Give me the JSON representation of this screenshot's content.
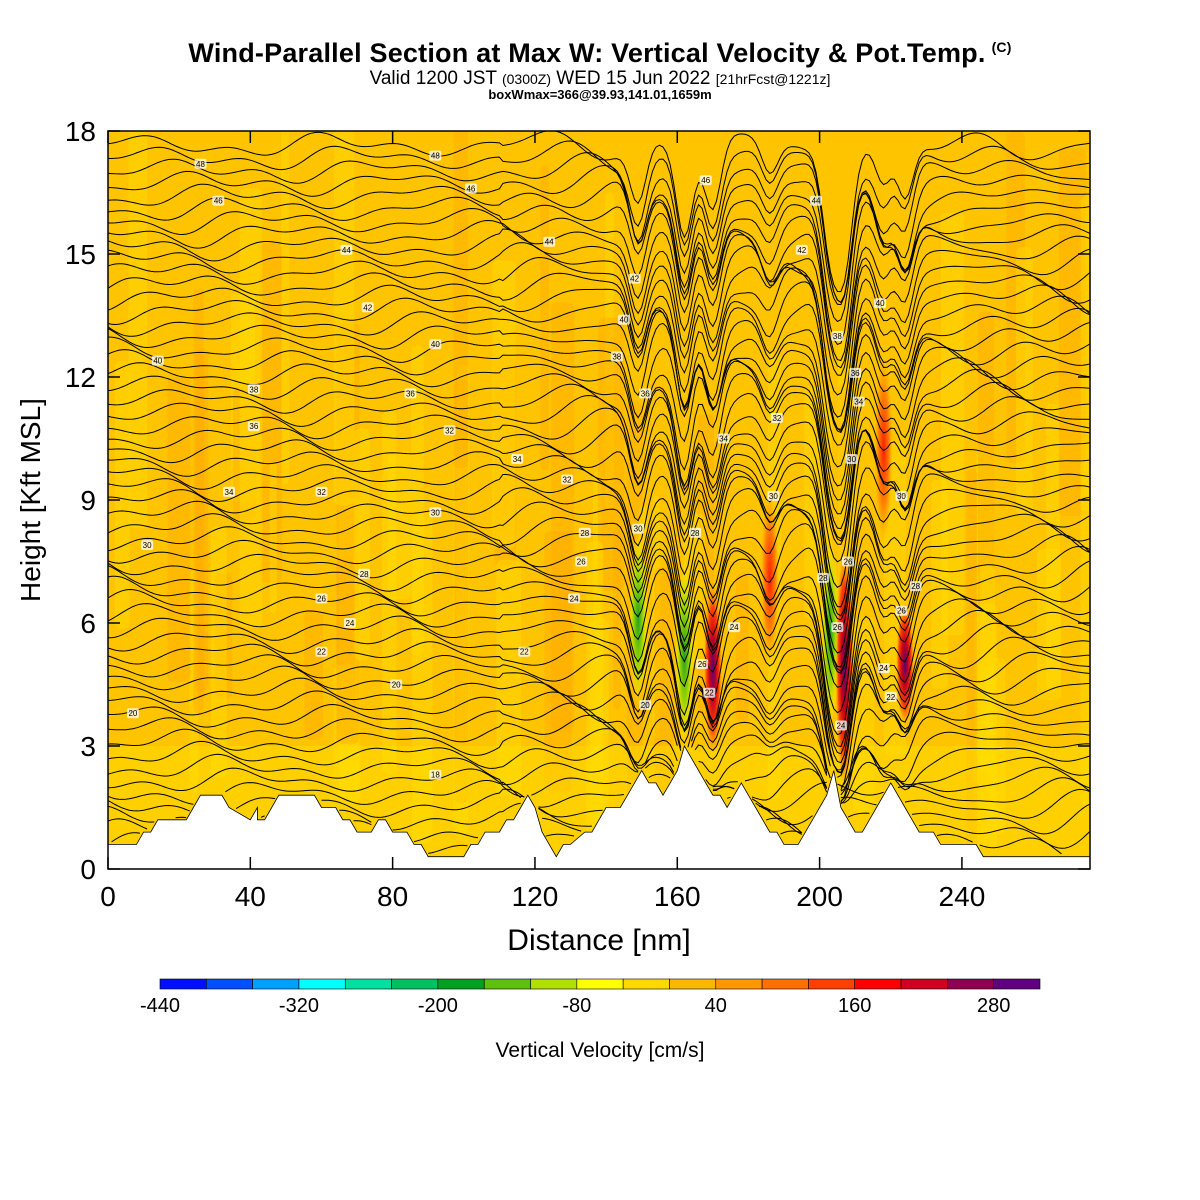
{
  "header": {
    "title": "Wind-Parallel Section at Max W: Vertical Velocity & Pot.Temp.",
    "title_mark": "(C)",
    "valid_prefix": "Valid 1200 JST",
    "valid_zulu": "(0300Z)",
    "valid_date": "WED 15 Jun 2022",
    "forecast_info": "[21hrFcst@1221z]",
    "box_info": "boxWmax=366@39.93,141.01,1659m"
  },
  "chart_data": {
    "type": "heatmap",
    "xlabel": "Distance [nm]",
    "ylabel": "Height [Kft MSL]",
    "xlim": [
      0,
      276
    ],
    "ylim": [
      0,
      18
    ],
    "x_ticks": [
      0,
      40,
      80,
      120,
      160,
      200,
      240
    ],
    "y_ticks": [
      0,
      3,
      6,
      9,
      12,
      15,
      18
    ],
    "terrain_kft": [
      [
        0,
        0.6
      ],
      [
        8,
        0.6
      ],
      [
        10,
        0.9
      ],
      [
        12,
        0.9
      ],
      [
        14,
        1.2
      ],
      [
        22,
        1.2
      ],
      [
        24,
        1.5
      ],
      [
        26,
        1.8
      ],
      [
        32,
        1.8
      ],
      [
        34,
        1.5
      ],
      [
        42,
        1.5
      ],
      [
        44,
        1.2
      ],
      [
        40,
        1.2
      ],
      [
        42,
        1.2
      ],
      [
        44,
        1.2
      ],
      [
        46,
        1.5
      ],
      [
        48,
        1.8
      ],
      [
        58,
        1.8
      ],
      [
        60,
        1.5
      ],
      [
        64,
        1.5
      ],
      [
        66,
        1.2
      ],
      [
        68,
        1.2
      ],
      [
        70,
        0.9
      ],
      [
        74,
        0.9
      ],
      [
        76,
        1.2
      ],
      [
        78,
        1.2
      ],
      [
        80,
        0.9
      ],
      [
        84,
        0.9
      ],
      [
        86,
        0.6
      ],
      [
        88,
        0.6
      ],
      [
        90,
        0.3
      ],
      [
        100,
        0.3
      ],
      [
        102,
        0.6
      ],
      [
        104,
        0.6
      ],
      [
        106,
        0.9
      ],
      [
        110,
        0.9
      ],
      [
        112,
        1.2
      ],
      [
        114,
        1.2
      ],
      [
        116,
        1.5
      ],
      [
        118,
        1.8
      ],
      [
        120,
        1.5
      ],
      [
        122,
        0.9
      ],
      [
        124,
        0.6
      ],
      [
        126,
        0.3
      ],
      [
        128,
        0.6
      ],
      [
        130,
        0.6
      ],
      [
        134,
        0.9
      ],
      [
        136,
        0.9
      ],
      [
        138,
        1.2
      ],
      [
        140,
        1.5
      ],
      [
        144,
        1.5
      ],
      [
        146,
        1.8
      ],
      [
        148,
        2.1
      ],
      [
        150,
        2.4
      ],
      [
        152,
        2.1
      ],
      [
        154,
        2.1
      ],
      [
        156,
        1.8
      ],
      [
        158,
        2.1
      ],
      [
        160,
        2.4
      ],
      [
        162,
        3.0
      ],
      [
        164,
        2.7
      ],
      [
        166,
        2.4
      ],
      [
        168,
        2.1
      ],
      [
        170,
        1.8
      ],
      [
        172,
        1.8
      ],
      [
        174,
        1.5
      ],
      [
        176,
        1.8
      ],
      [
        178,
        2.1
      ],
      [
        180,
        1.8
      ],
      [
        182,
        1.5
      ],
      [
        184,
        1.2
      ],
      [
        186,
        0.9
      ],
      [
        188,
        0.9
      ],
      [
        190,
        0.6
      ],
      [
        194,
        0.6
      ],
      [
        196,
        0.9
      ],
      [
        198,
        1.2
      ],
      [
        200,
        1.5
      ],
      [
        202,
        1.8
      ],
      [
        204,
        2.4
      ],
      [
        206,
        1.5
      ],
      [
        208,
        1.2
      ],
      [
        210,
        0.9
      ],
      [
        212,
        0.9
      ],
      [
        214,
        1.2
      ],
      [
        216,
        1.5
      ],
      [
        218,
        1.8
      ],
      [
        220,
        2.1
      ],
      [
        222,
        1.8
      ],
      [
        224,
        1.5
      ],
      [
        226,
        1.2
      ],
      [
        228,
        0.9
      ],
      [
        232,
        0.9
      ],
      [
        234,
        0.6
      ],
      [
        244,
        0.6
      ],
      [
        246,
        0.3
      ],
      [
        276,
        0.3
      ]
    ],
    "updraft_cores": [
      {
        "x": 149,
        "w": -150,
        "top_kft": 8.2,
        "bottom_kft": 4.0
      },
      {
        "x": 162,
        "w": -130,
        "top_kft": 7.5,
        "bottom_kft": 3.0
      },
      {
        "x": 170,
        "w": 230,
        "top_kft": 7.0,
        "bottom_kft": 2.8
      },
      {
        "x": 186,
        "w": 160,
        "top_kft": 9.2,
        "bottom_kft": 5.0
      },
      {
        "x": 203,
        "w": -130,
        "top_kft": 8.0,
        "bottom_kft": 3.5
      },
      {
        "x": 207,
        "w": 366,
        "top_kft": 7.8,
        "bottom_kft": 2.0
      },
      {
        "x": 218,
        "w": 130,
        "top_kft": 12.5,
        "bottom_kft": 8.0
      },
      {
        "x": 224,
        "w": 200,
        "top_kft": 6.5,
        "bottom_kft": 3.5
      }
    ],
    "contour_labels": [
      {
        "x": 26,
        "y": 17.2,
        "text": "48"
      },
      {
        "x": 92,
        "y": 17.4,
        "text": "48"
      },
      {
        "x": 168,
        "y": 16.8,
        "text": "46"
      },
      {
        "x": 31,
        "y": 16.3,
        "text": "46"
      },
      {
        "x": 102,
        "y": 16.6,
        "text": "46"
      },
      {
        "x": 199,
        "y": 16.3,
        "text": "44"
      },
      {
        "x": 67,
        "y": 15.1,
        "text": "44"
      },
      {
        "x": 124,
        "y": 15.3,
        "text": "44"
      },
      {
        "x": 195,
        "y": 15.1,
        "text": "42"
      },
      {
        "x": 148,
        "y": 14.4,
        "text": "42"
      },
      {
        "x": 73,
        "y": 13.7,
        "text": "42"
      },
      {
        "x": 217,
        "y": 13.8,
        "text": "40"
      },
      {
        "x": 145,
        "y": 13.4,
        "text": "40"
      },
      {
        "x": 92,
        "y": 12.8,
        "text": "40"
      },
      {
        "x": 14,
        "y": 12.4,
        "text": "40"
      },
      {
        "x": 143,
        "y": 12.5,
        "text": "38"
      },
      {
        "x": 205,
        "y": 13.0,
        "text": "38"
      },
      {
        "x": 41,
        "y": 11.7,
        "text": "38"
      },
      {
        "x": 85,
        "y": 11.6,
        "text": "36"
      },
      {
        "x": 210,
        "y": 12.1,
        "text": "36"
      },
      {
        "x": 151,
        "y": 11.6,
        "text": "36"
      },
      {
        "x": 211,
        "y": 11.4,
        "text": "34"
      },
      {
        "x": 41,
        "y": 10.8,
        "text": "36"
      },
      {
        "x": 96,
        "y": 10.7,
        "text": "32"
      },
      {
        "x": 188,
        "y": 11.0,
        "text": "32"
      },
      {
        "x": 173,
        "y": 10.5,
        "text": "34"
      },
      {
        "x": 115,
        "y": 10.0,
        "text": "34"
      },
      {
        "x": 209,
        "y": 10.0,
        "text": "30"
      },
      {
        "x": 129,
        "y": 9.5,
        "text": "32"
      },
      {
        "x": 34,
        "y": 9.2,
        "text": "34"
      },
      {
        "x": 60,
        "y": 9.2,
        "text": "32"
      },
      {
        "x": 187,
        "y": 9.1,
        "text": "30"
      },
      {
        "x": 223,
        "y": 9.1,
        "text": "30"
      },
      {
        "x": 92,
        "y": 8.7,
        "text": "30"
      },
      {
        "x": 149,
        "y": 8.3,
        "text": "30"
      },
      {
        "x": 165,
        "y": 8.2,
        "text": "28"
      },
      {
        "x": 134,
        "y": 8.2,
        "text": "28"
      },
      {
        "x": 11,
        "y": 7.9,
        "text": "30"
      },
      {
        "x": 133,
        "y": 7.5,
        "text": "26"
      },
      {
        "x": 208,
        "y": 7.5,
        "text": "26"
      },
      {
        "x": 72,
        "y": 7.2,
        "text": "28"
      },
      {
        "x": 201,
        "y": 7.1,
        "text": "28"
      },
      {
        "x": 227,
        "y": 6.9,
        "text": "28"
      },
      {
        "x": 60,
        "y": 6.6,
        "text": "26"
      },
      {
        "x": 131,
        "y": 6.6,
        "text": "24"
      },
      {
        "x": 223,
        "y": 6.3,
        "text": "26"
      },
      {
        "x": 68,
        "y": 6.0,
        "text": "24"
      },
      {
        "x": 205,
        "y": 5.9,
        "text": "26"
      },
      {
        "x": 176,
        "y": 5.9,
        "text": "24"
      },
      {
        "x": 60,
        "y": 5.3,
        "text": "22"
      },
      {
        "x": 117,
        "y": 5.3,
        "text": "22"
      },
      {
        "x": 167,
        "y": 5.0,
        "text": "26"
      },
      {
        "x": 218,
        "y": 4.9,
        "text": "24"
      },
      {
        "x": 81,
        "y": 4.5,
        "text": "20"
      },
      {
        "x": 169,
        "y": 4.3,
        "text": "22"
      },
      {
        "x": 220,
        "y": 4.2,
        "text": "22"
      },
      {
        "x": 151,
        "y": 4.0,
        "text": "20"
      },
      {
        "x": 7,
        "y": 3.8,
        "text": "20"
      },
      {
        "x": 206,
        "y": 3.5,
        "text": "24"
      },
      {
        "x": 92,
        "y": 2.3,
        "text": "18"
      }
    ]
  },
  "colorbar": {
    "label": "Vertical Velocity [cm/s]",
    "tick_labels": [
      "-440",
      "-320",
      "-200",
      "-80",
      "40",
      "160",
      "280"
    ],
    "colors": [
      "#0010ff",
      "#0050ff",
      "#00a0ff",
      "#00ffff",
      "#00e0a0",
      "#00c060",
      "#00a020",
      "#60c010",
      "#b0e000",
      "#ffff00",
      "#ffd800",
      "#ffb800",
      "#ff9800",
      "#ff7000",
      "#ff4000",
      "#ff0000",
      "#d00020",
      "#900050",
      "#600080"
    ]
  }
}
